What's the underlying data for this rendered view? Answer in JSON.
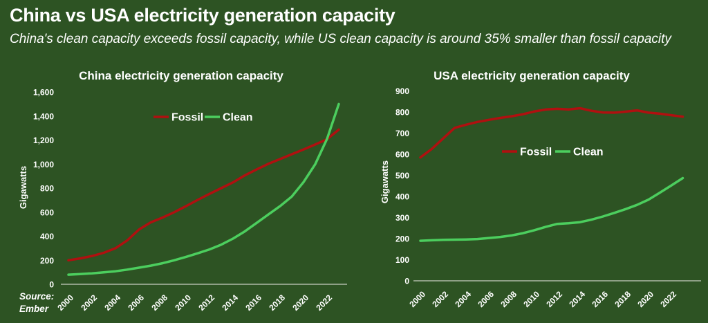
{
  "page": {
    "title": "China vs USA electricity generation capacity",
    "subtitle": "China's clean capacity exceeds fossil capacity, while US clean capacity is around 35% smaller than fossil capacity",
    "source_label": "Source:",
    "source_name": "Ember"
  },
  "colors": {
    "background": "#2d5323",
    "text": "#ffffff",
    "axis_line": "#c9cfc2",
    "fossil": "#b01010",
    "clean": "#4cce5e"
  },
  "chart_data": [
    {
      "type": "line",
      "title": "China electricity generation capacity",
      "xlabel": "",
      "ylabel": "Gigawatts",
      "ylim": [
        0,
        1600
      ],
      "ytick_step": 200,
      "xtick_step": 2,
      "grid": false,
      "legend_position": "inside-top-center",
      "x": [
        2000,
        2001,
        2002,
        2003,
        2004,
        2005,
        2006,
        2007,
        2008,
        2009,
        2010,
        2011,
        2012,
        2013,
        2014,
        2015,
        2016,
        2017,
        2018,
        2019,
        2020,
        2021,
        2022,
        2023
      ],
      "series": [
        {
          "name": "Fossil",
          "color": "#b01010",
          "values": [
            200,
            215,
            235,
            262,
            300,
            365,
            455,
            515,
            555,
            600,
            650,
            702,
            752,
            800,
            848,
            906,
            955,
            1002,
            1042,
            1082,
            1122,
            1163,
            1207,
            1287
          ]
        },
        {
          "name": "Clean",
          "color": "#4cce5e",
          "values": [
            80,
            85,
            91,
            99,
            108,
            122,
            138,
            155,
            175,
            200,
            228,
            258,
            290,
            330,
            380,
            440,
            510,
            580,
            650,
            730,
            850,
            1000,
            1210,
            1500
          ]
        }
      ]
    },
    {
      "type": "line",
      "title": "USA electricity generation capacity",
      "xlabel": "",
      "ylabel": "Gigawatts",
      "ylim": [
        0,
        900
      ],
      "ytick_step": 100,
      "xtick_step": 2,
      "grid": false,
      "legend_position": "inside-middle-center",
      "x": [
        2000,
        2001,
        2002,
        2003,
        2004,
        2005,
        2006,
        2007,
        2008,
        2009,
        2010,
        2011,
        2012,
        2013,
        2014,
        2015,
        2016,
        2017,
        2018,
        2019,
        2020,
        2021,
        2022,
        2023
      ],
      "series": [
        {
          "name": "Fossil",
          "color": "#b01010",
          "values": [
            585,
            625,
            675,
            725,
            740,
            753,
            763,
            772,
            780,
            790,
            803,
            812,
            815,
            812,
            818,
            806,
            798,
            797,
            802,
            808,
            797,
            792,
            785,
            778
          ]
        },
        {
          "name": "Clean",
          "color": "#4cce5e",
          "values": [
            190,
            192,
            194,
            195,
            196,
            198,
            203,
            208,
            215,
            226,
            240,
            256,
            270,
            273,
            278,
            290,
            305,
            322,
            340,
            360,
            385,
            418,
            452,
            487
          ]
        }
      ]
    }
  ]
}
